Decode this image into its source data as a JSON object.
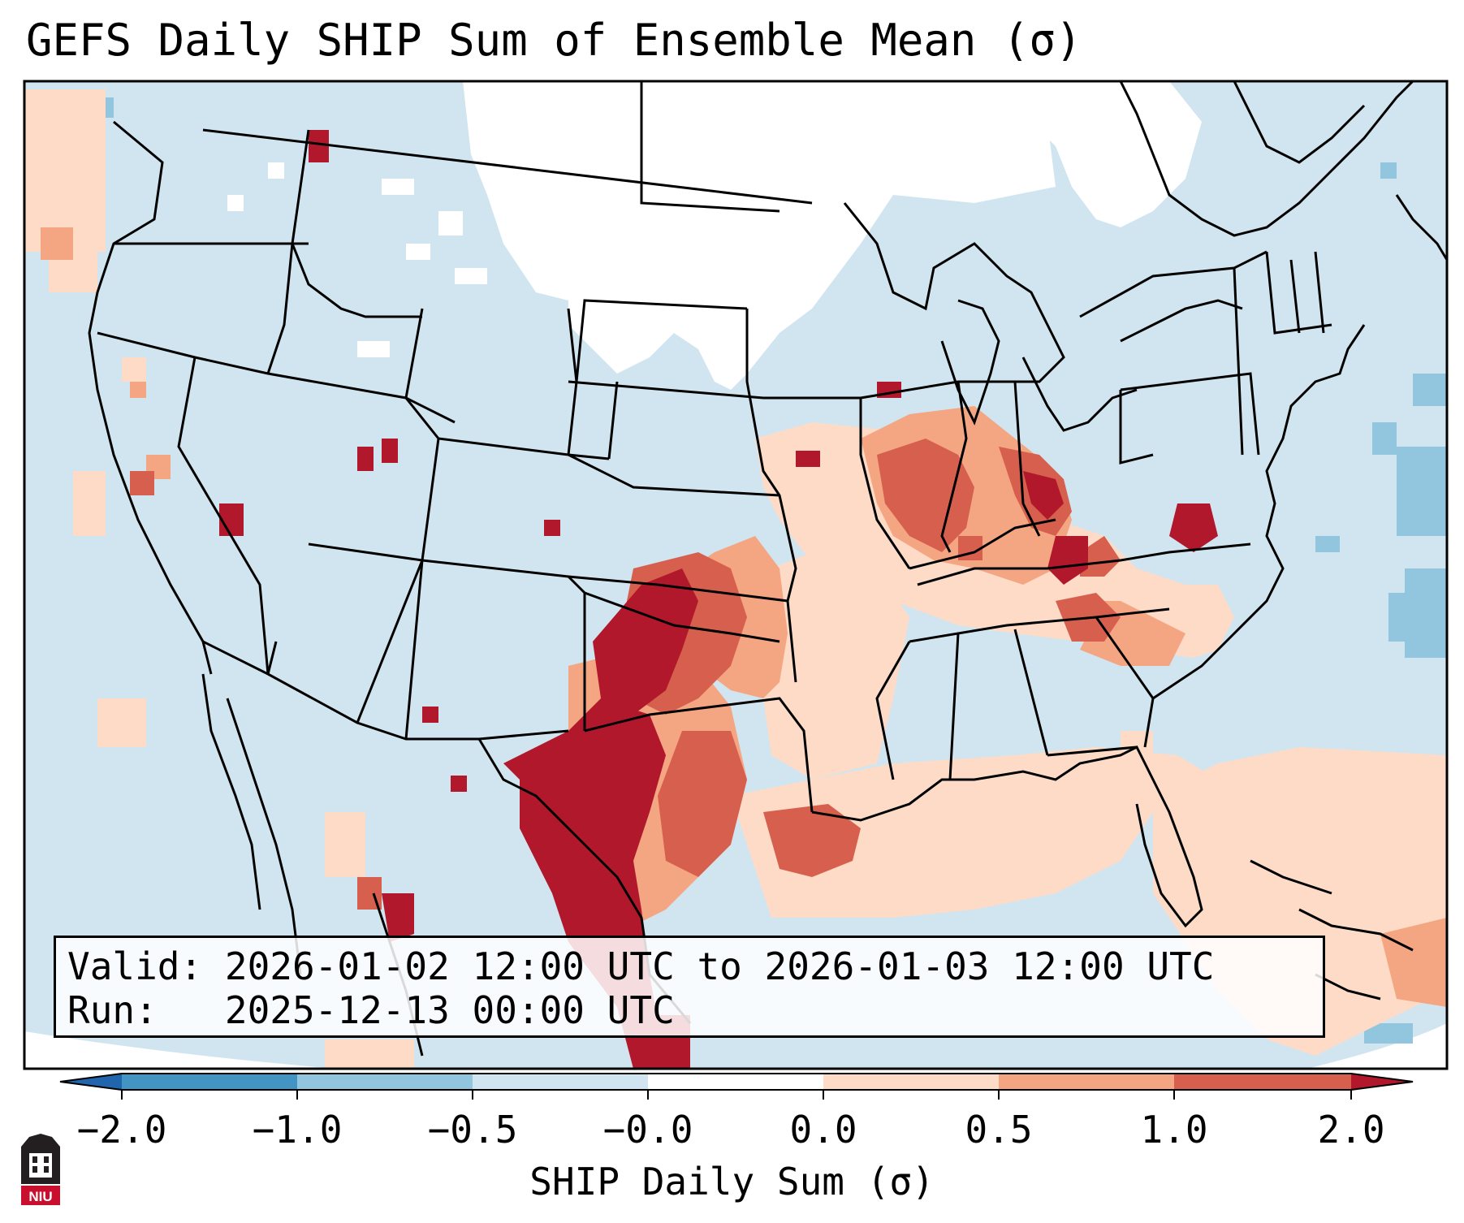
{
  "title": "GEFS Daily SHIP Sum of Ensemble Mean (σ)",
  "info": {
    "valid_label": "Valid:",
    "valid_value": "2026-01-02 12:00 UTC to 2026-01-03 12:00 UTC",
    "run_label": "Run:",
    "run_value": "2025-12-13 00:00 UTC"
  },
  "colorbar": {
    "label": "SHIP Daily Sum (σ)",
    "ticks": [
      "−2.0",
      "−1.0",
      "−0.5",
      "−0.0",
      "0.0",
      "0.5",
      "1.0",
      "2.0"
    ],
    "bins": [
      {
        "range": "below -2.0",
        "color": "#2166ac"
      },
      {
        "range": "-2.0 to -1.0",
        "color": "#4393c3"
      },
      {
        "range": "-1.0 to -0.5",
        "color": "#92c5de"
      },
      {
        "range": "-0.5 to -0.0",
        "color": "#d1e5f0"
      },
      {
        "range": "-0.0 to 0.0",
        "color": "#ffffff"
      },
      {
        "range": "0.0 to 0.5",
        "color": "#fddbc7"
      },
      {
        "range": "0.5 to 1.0",
        "color": "#f4a582"
      },
      {
        "range": "1.0 to 2.0",
        "color": "#d6604d"
      },
      {
        "range": "above 2.0",
        "color": "#b2182b"
      }
    ]
  },
  "logo": {
    "text": "NIU",
    "color": "#c8102e"
  }
}
